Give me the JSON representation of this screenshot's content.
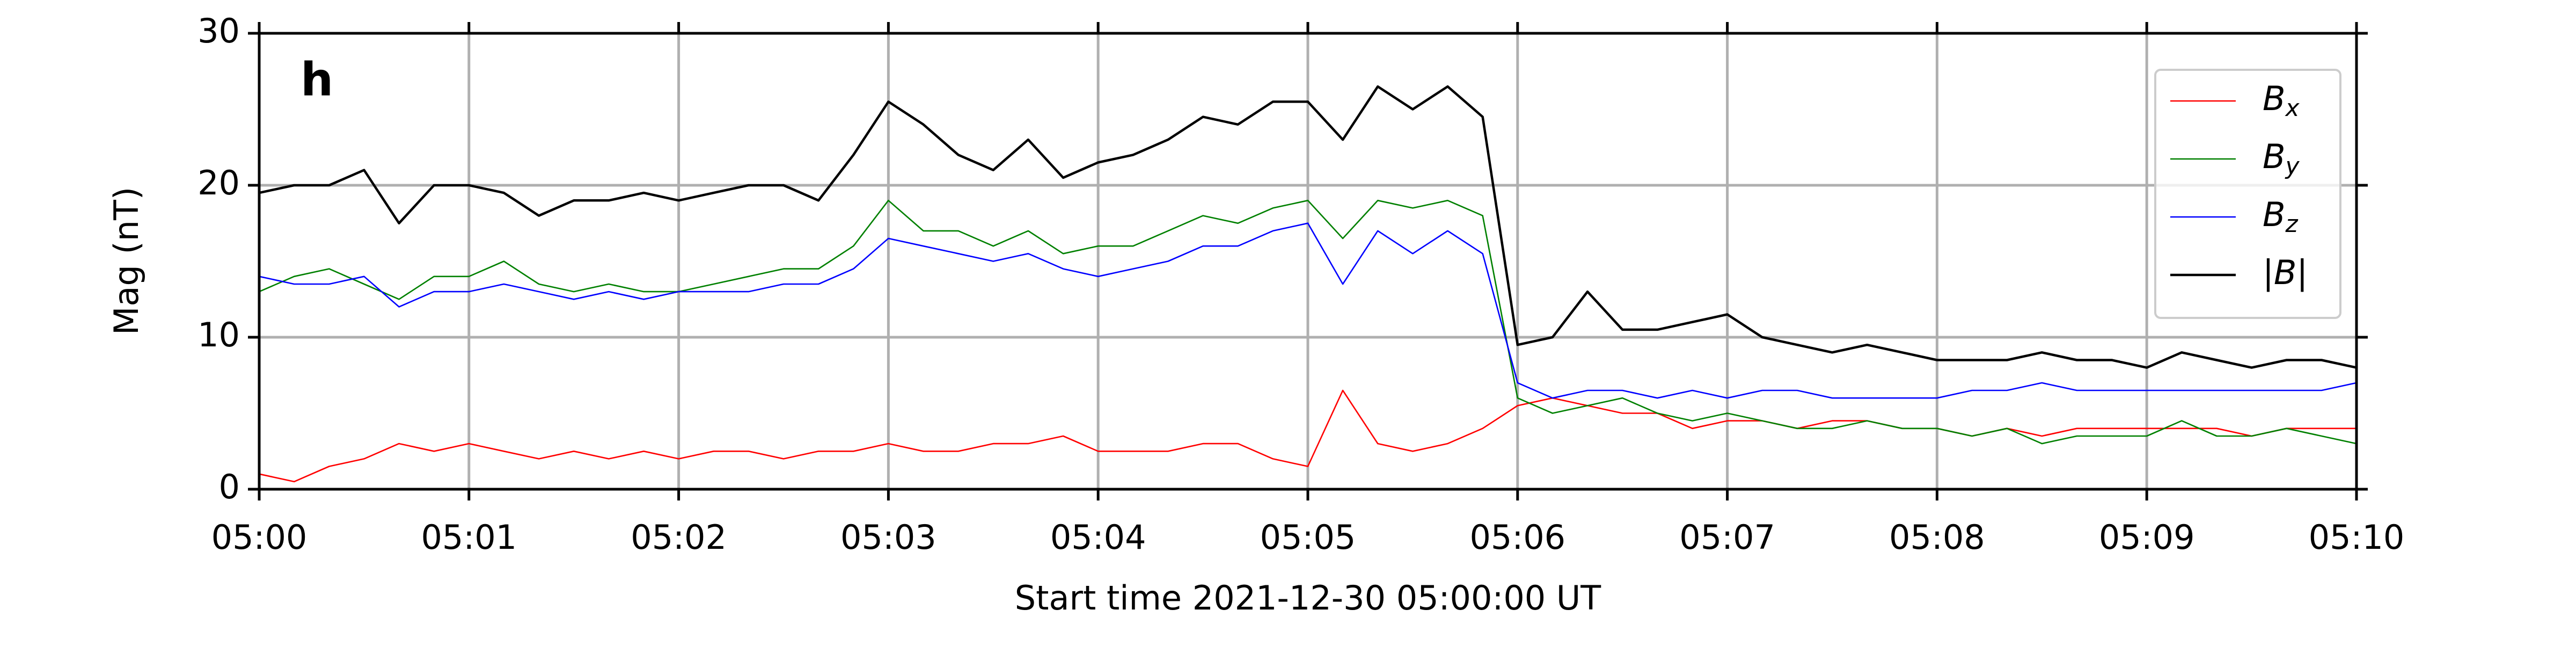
{
  "chart_data": {
    "type": "line",
    "panel_label": "h",
    "xlabel": "Start time 2021-12-30 05:00:00 UT",
    "ylabel": "Mag (nT)",
    "x": [
      0,
      0.1667,
      0.3333,
      0.5,
      0.6667,
      0.8333,
      1,
      1.1667,
      1.3333,
      1.5,
      1.6667,
      1.8333,
      2,
      2.1667,
      2.3333,
      2.5,
      2.6667,
      2.8333,
      3,
      3.1667,
      3.3333,
      3.5,
      3.6667,
      3.8333,
      4,
      4.1667,
      4.3333,
      4.5,
      4.6667,
      4.8333,
      5,
      5.1667,
      5.3333,
      5.5,
      5.6667,
      5.8333,
      6,
      6.1667,
      6.3333,
      6.5,
      6.6667,
      6.8333,
      7,
      7.1667,
      7.3333,
      7.5,
      7.6667,
      7.8333,
      8,
      8.1667,
      8.3333,
      8.5,
      8.6667,
      8.8333,
      9,
      9.1667,
      9.3333,
      9.5,
      9.6667,
      9.8333,
      10
    ],
    "series": [
      {
        "name": "Bx",
        "color": "#ff0000",
        "values": [
          1,
          0.5,
          1.5,
          2,
          3,
          2.5,
          3,
          2.5,
          2,
          2.5,
          2,
          2.5,
          2,
          2.5,
          2.5,
          2,
          2.5,
          2.5,
          3,
          2.5,
          2.5,
          3,
          3,
          3.5,
          2.5,
          2.5,
          2.5,
          3,
          3,
          2,
          1.5,
          6.5,
          3,
          2.5,
          3,
          4,
          5.5,
          6,
          5.5,
          5,
          5,
          4,
          4.5,
          4.5,
          4,
          4.5,
          4.5,
          4,
          4,
          3.5,
          4,
          3.5,
          4,
          4,
          4,
          4,
          4,
          3.5,
          4,
          4,
          4
        ]
      },
      {
        "name": "By",
        "color": "#008000",
        "values": [
          13,
          14,
          14.5,
          13.5,
          12.5,
          14,
          14,
          15,
          13.5,
          13,
          13.5,
          13,
          13,
          13.5,
          14,
          14.5,
          14.5,
          16,
          19,
          17,
          17,
          16,
          17,
          15.5,
          16,
          16,
          17,
          18,
          17.5,
          18.5,
          19,
          16.5,
          19,
          18.5,
          19,
          18,
          6,
          5,
          5.5,
          6,
          5,
          4.5,
          5,
          4.5,
          4,
          4,
          4.5,
          4,
          4,
          3.5,
          4,
          3,
          3.5,
          3.5,
          3.5,
          4.5,
          3.5,
          3.5,
          4,
          3.5,
          3
        ]
      },
      {
        "name": "Bz",
        "color": "#0000ff",
        "values": [
          14,
          13.5,
          13.5,
          14,
          12,
          13,
          13,
          13.5,
          13,
          12.5,
          13,
          12.5,
          13,
          13,
          13,
          13.5,
          13.5,
          14.5,
          16.5,
          16,
          15.5,
          15,
          15.5,
          14.5,
          14,
          14.5,
          15,
          16,
          16,
          17,
          17.5,
          13.5,
          17,
          15.5,
          17,
          15.5,
          7,
          6,
          6.5,
          6.5,
          6,
          6.5,
          6,
          6.5,
          6.5,
          6,
          6,
          6,
          6,
          6.5,
          6.5,
          7,
          6.5,
          6.5,
          6.5,
          6.5,
          6.5,
          6.5,
          6.5,
          6.5,
          7
        ]
      },
      {
        "name": "|B|",
        "color": "#000000",
        "values": [
          19.5,
          20,
          20,
          21,
          17.5,
          20,
          20,
          19.5,
          18,
          19,
          19,
          19.5,
          19,
          19.5,
          20,
          20,
          19,
          22,
          25.5,
          24,
          22,
          21,
          23,
          20.5,
          21.5,
          22,
          23,
          24.5,
          24,
          25.5,
          25.5,
          23,
          26.5,
          25,
          26.5,
          24.5,
          9.5,
          10,
          13,
          10.5,
          10.5,
          11,
          11.5,
          10,
          9.5,
          9,
          9.5,
          9,
          8.5,
          8.5,
          8.5,
          9,
          8.5,
          8.5,
          8,
          9,
          8.5,
          8,
          8.5,
          8.5,
          8
        ]
      }
    ],
    "xlim": [
      0,
      10
    ],
    "xticks": [
      {
        "value": 0,
        "label": "05:00"
      },
      {
        "value": 1,
        "label": "05:01"
      },
      {
        "value": 2,
        "label": "05:02"
      },
      {
        "value": 3,
        "label": "05:03"
      },
      {
        "value": 4,
        "label": "05:04"
      },
      {
        "value": 5,
        "label": "05:05"
      },
      {
        "value": 6,
        "label": "05:06"
      },
      {
        "value": 7,
        "label": "05:07"
      },
      {
        "value": 8,
        "label": "05:08"
      },
      {
        "value": 9,
        "label": "05:09"
      },
      {
        "value": 10,
        "label": "05:10"
      }
    ],
    "ylim": [
      0,
      30
    ],
    "yticks": [
      0,
      10,
      20,
      30
    ],
    "grid": true,
    "legend": "upper right"
  }
}
